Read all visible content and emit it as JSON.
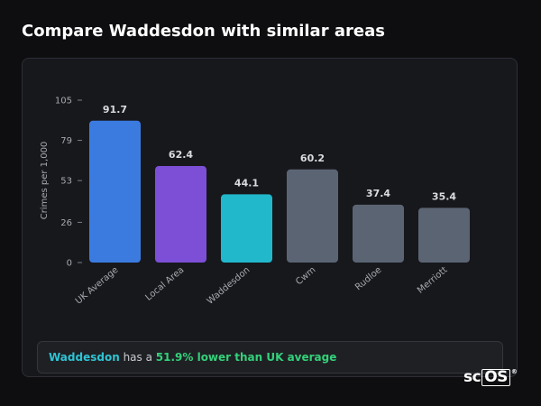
{
  "page": {
    "title": "Compare Waddesdon with similar areas"
  },
  "chart_data": {
    "type": "bar",
    "ylabel": "Crimes per 1,000",
    "ylim": [
      0,
      105
    ],
    "yticks": [
      0,
      26,
      53,
      79,
      105
    ],
    "categories": [
      "UK Average",
      "Local Area",
      "Waddesdon",
      "Cwm",
      "Rudloe",
      "Merriott"
    ],
    "values": [
      91.7,
      62.4,
      44.1,
      60.2,
      37.4,
      35.4
    ],
    "value_labels": [
      "91.7",
      "62.4",
      "44.1",
      "60.2",
      "37.4",
      "35.4"
    ],
    "colors": [
      "#3b7be0",
      "#7c4fd6",
      "#22b8cc",
      "#5b6473",
      "#5b6473",
      "#5b6473"
    ],
    "grid": false,
    "legend": "none"
  },
  "summary": {
    "area_name": "Waddesdon",
    "middle_text": " has a ",
    "stat_text": "51.9% lower than UK average"
  },
  "logo": {
    "text_a": "sc",
    "text_b": "OS",
    "mark": "®"
  }
}
